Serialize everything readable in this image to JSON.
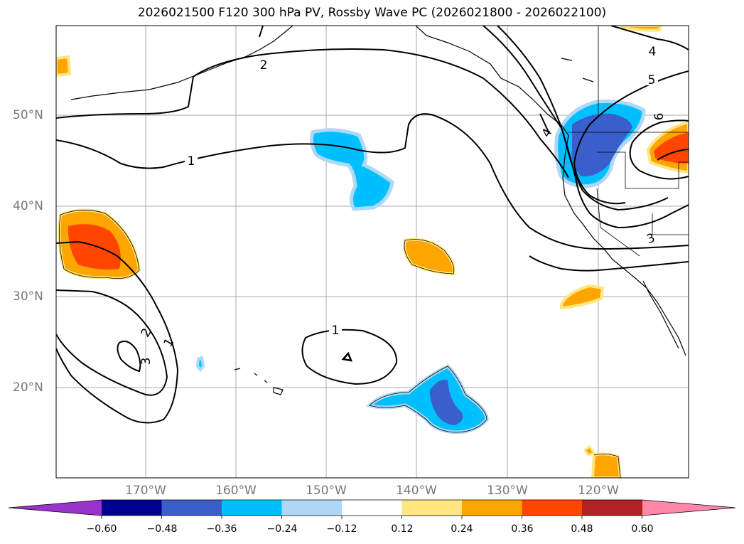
{
  "title": "2026021500 F120 300 hPa PV, Rossby Wave PC (2026021800 - 2026022100)",
  "map": {
    "lat_labels": [
      "50°N",
      "40°N",
      "30°N",
      "20°N"
    ],
    "lon_labels": [
      "170°W",
      "160°W",
      "150°W",
      "140°W",
      "130°W",
      "120°W"
    ]
  },
  "contour_labels": {
    "c1a": "1",
    "c1b": "1",
    "c1c": "1",
    "c2a": "2",
    "c2b": "2",
    "c3a": "3",
    "c3b": "3",
    "c4a": "4",
    "c4b": "4",
    "c5": "5",
    "c6": "6"
  },
  "colorbar": {
    "labels": [
      "−0.60",
      "−0.48",
      "−0.36",
      "−0.24",
      "−0.12",
      "0.12",
      "0.24",
      "0.36",
      "0.48",
      "0.60"
    ],
    "colors": [
      "#9933cc",
      "#000090",
      "#3a5fcd",
      "#00bfff",
      "#add8f6",
      "#ffffff",
      "#ffe680",
      "#ffa500",
      "#ff4500",
      "#b22222",
      "#ff88aa"
    ]
  }
}
